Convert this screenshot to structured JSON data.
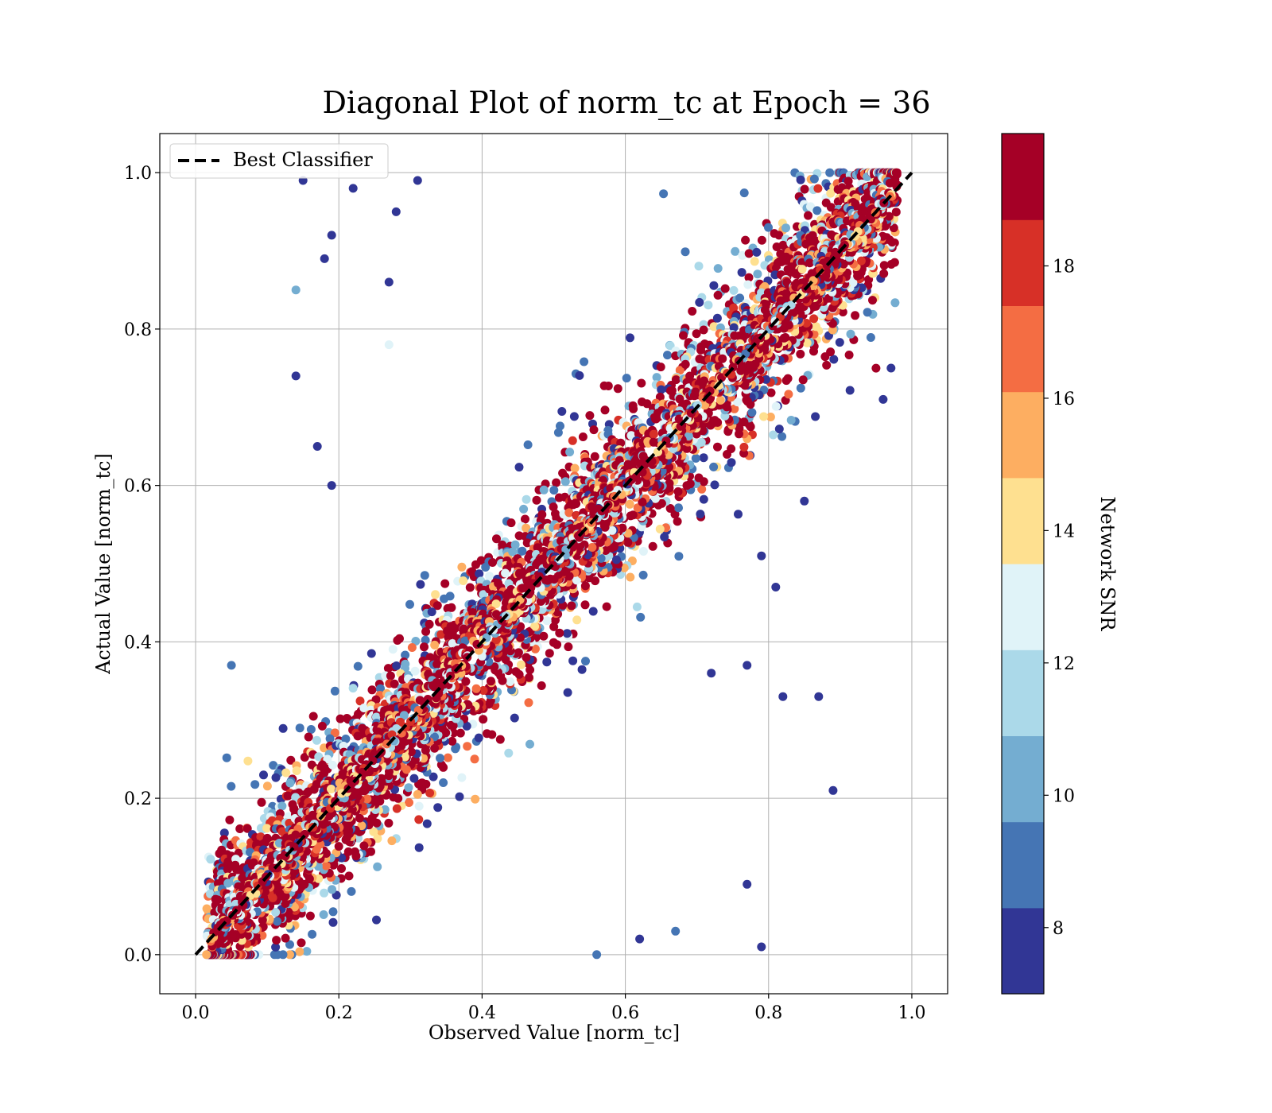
{
  "chart_data": {
    "type": "scatter",
    "title": "Diagonal Plot of norm_tc at Epoch = 36",
    "xlabel": "Observed Value [norm_tc]",
    "ylabel": "Actual Value [norm_tc]",
    "xlim": [
      -0.05,
      1.05
    ],
    "ylim": [
      -0.05,
      1.05
    ],
    "xticks": [
      0.0,
      0.2,
      0.4,
      0.6,
      0.8,
      1.0
    ],
    "yticks": [
      0.0,
      0.2,
      0.4,
      0.6,
      0.8,
      1.0
    ],
    "xtick_labels": [
      "0.0",
      "0.2",
      "0.4",
      "0.6",
      "0.8",
      "1.0"
    ],
    "ytick_labels": [
      "0.0",
      "0.2",
      "0.4",
      "0.6",
      "0.8",
      "1.0"
    ],
    "grid": true,
    "legend": {
      "placement": "upper-left",
      "entries": [
        "Best Classifier"
      ]
    },
    "reference_line": {
      "name": "Best Classifier",
      "x": [
        0.0,
        1.0
      ],
      "y": [
        0.0,
        1.0
      ],
      "style": "dashed",
      "color": "#000000"
    },
    "colorbar": {
      "label": "Network SNR",
      "range": [
        7,
        20
      ],
      "ticks": [
        8,
        10,
        12,
        14,
        16,
        18
      ],
      "tick_labels": [
        "8",
        "10",
        "12",
        "14",
        "16",
        "18"
      ],
      "colors": [
        "#313695",
        "#4575b4",
        "#74add1",
        "#abd9e9",
        "#e0f3f8",
        "#fee090",
        "#fdae61",
        "#f46d43",
        "#d73027",
        "#a50026"
      ]
    },
    "points": {
      "description_x": "observed norm_tc",
      "description_y": "actual norm_tc",
      "sample": [
        [
          0.15,
          0.99,
          7.5
        ],
        [
          0.22,
          0.98,
          7.5
        ],
        [
          0.19,
          0.92,
          7.5
        ],
        [
          0.28,
          0.95,
          7.8
        ],
        [
          0.18,
          0.89,
          7.6
        ],
        [
          0.27,
          0.86,
          7.7
        ],
        [
          0.14,
          0.85,
          10.5
        ],
        [
          0.31,
          0.99,
          7.6
        ],
        [
          0.14,
          0.74,
          7.5
        ],
        [
          0.27,
          0.78,
          13.0
        ],
        [
          0.05,
          0.37,
          8.5
        ],
        [
          0.17,
          0.65,
          7.5
        ],
        [
          0.19,
          0.6,
          7.5
        ],
        [
          0.87,
          0.33,
          7.5
        ],
        [
          0.82,
          0.33,
          7.5
        ],
        [
          0.89,
          0.21,
          8.0
        ],
        [
          0.79,
          0.01,
          7.5
        ],
        [
          0.56,
          0.0,
          8.5
        ],
        [
          0.62,
          0.02,
          7.5
        ],
        [
          0.67,
          0.03,
          9.5
        ],
        [
          0.81,
          0.47,
          7.5
        ],
        [
          0.79,
          0.51,
          7.5
        ],
        [
          0.77,
          0.37,
          7.5
        ],
        [
          0.95,
          0.75,
          19.5
        ],
        [
          0.96,
          0.71,
          7.5
        ],
        [
          0.85,
          0.58,
          7.5
        ],
        [
          0.72,
          0.36,
          7.5
        ],
        [
          0.77,
          0.09,
          7.5
        ]
      ]
    }
  }
}
